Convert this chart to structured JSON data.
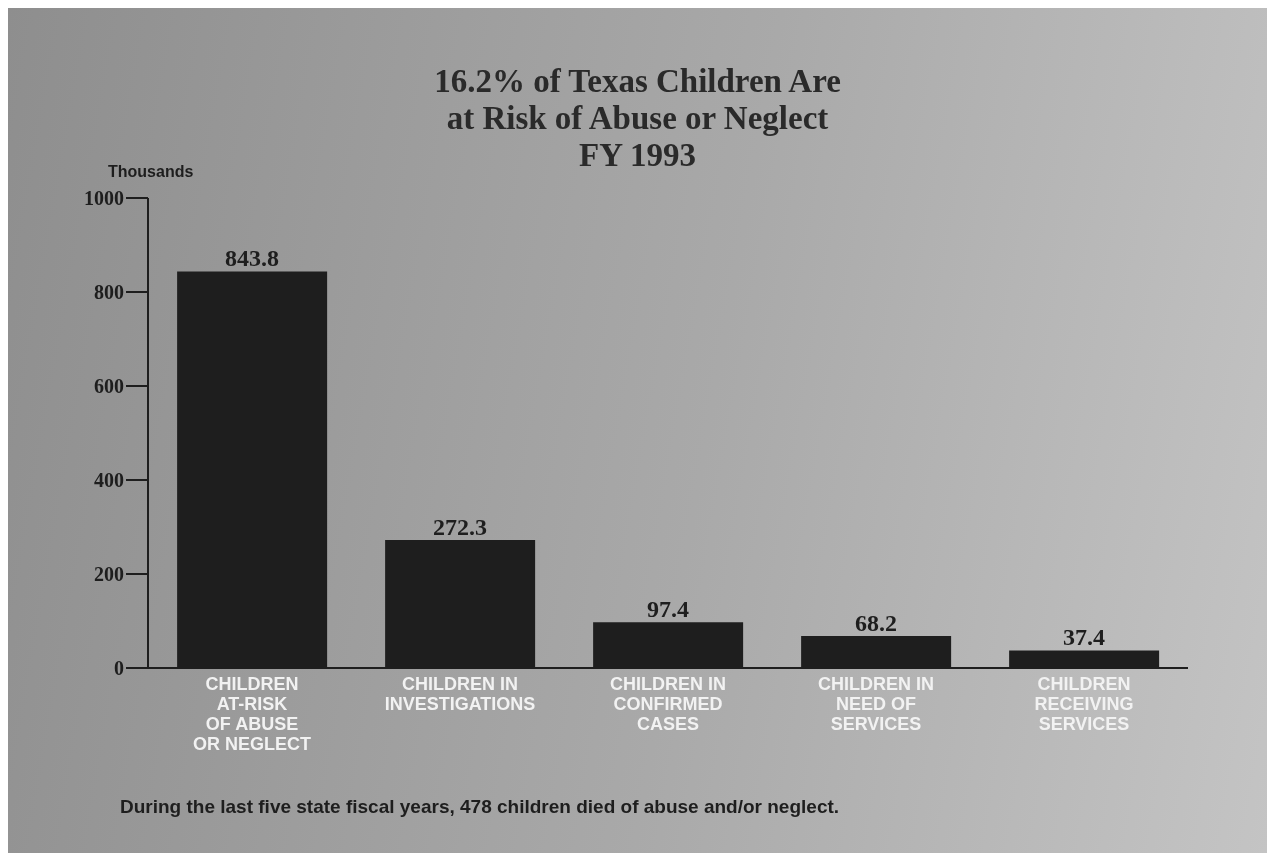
{
  "chart_data": {
    "type": "bar",
    "title": "16.2% of Texas Children Are\nat Risk of Abuse or Neglect\nFY 1993",
    "ylabel": "Thousands",
    "categories": [
      "CHILDREN\nAT-RISK\nOF ABUSE\nOR NEGLECT",
      "CHILDREN IN\nINVESTIGATIONS",
      "CHILDREN IN\nCONFIRMED\nCASES",
      "CHILDREN IN\nNEED OF\nSERVICES",
      "CHILDREN\nRECEIVING\nSERVICES"
    ],
    "values": [
      843.8,
      272.3,
      97.4,
      68.2,
      37.4
    ],
    "color": "#1e1e1e",
    "ylim": [
      0,
      1000
    ],
    "yticks": [
      0,
      200,
      400,
      600,
      800,
      1000
    ],
    "grid": false,
    "legend": false,
    "data_labels": true,
    "annotations": [
      "During the last five state fiscal years, 478 children died of abuse and/or neglect."
    ]
  }
}
